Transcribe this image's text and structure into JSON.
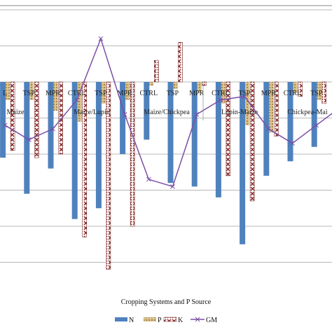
{
  "chart_data": {
    "type": "bar",
    "title": "",
    "xlabel": "Cropping Systems and P Source",
    "ylabel": "",
    "ylim": [
      -5.8,
      2.2
    ],
    "grid": true,
    "legend_position": "bottom",
    "categories": [
      "CTRL",
      "TSP",
      "MPR",
      "CTRL",
      "TSP",
      "MPR",
      "CTRL",
      "TSP",
      "MPR",
      "CTRL",
      "TSP",
      "MPR",
      "CTRL",
      "TSP",
      "MPR"
    ],
    "category_labels_visible": [
      "L",
      "TSP",
      "MPR",
      "CTRL",
      "TSP",
      "MPR",
      "CTRL",
      "TSP",
      "MPR",
      "CTRL",
      "TSP",
      "MPR",
      "CTRL",
      "TSP",
      "MP"
    ],
    "groups": [
      "Maize",
      "Maize/Lupin",
      "Maize/Chickpea",
      "Lupin-Maize",
      "Chickpea-Maize"
    ],
    "group_labels_visible": [
      "Maize",
      "Maize/Lupin",
      "Maize/Chickpea",
      "Lupin-Maize",
      "Chickpea-Mai"
    ],
    "series": [
      {
        "name": "N",
        "values": [
          -2.1,
          -3.1,
          -2.4,
          -3.8,
          -3.5,
          -2.0,
          -1.6,
          -2.8,
          -2.9,
          -3.2,
          -4.5,
          -2.6,
          -2.2,
          -1.8,
          -1.9
        ],
        "color": "#4f81bd"
      },
      {
        "name": "P",
        "values": [
          -0.5,
          -0.5,
          -0.8,
          -1.1,
          -0.6,
          -0.5,
          -0.1,
          -0.2,
          -0.3,
          -0.6,
          -1.2,
          -1.4,
          -0.3,
          -0.5,
          -0.6
        ],
        "color": "#c6a96b"
      },
      {
        "name": "K",
        "values": [
          -1.9,
          -2.1,
          -2.0,
          -4.3,
          -5.2,
          -4.0,
          0.6,
          1.1,
          -0.1,
          -2.6,
          -3.3,
          -1.5,
          -0.4,
          -0.6,
          -0.7
        ],
        "color": "#8b2525"
      }
    ],
    "line_series": {
      "name": "GM",
      "values": [
        -1.2,
        -1.6,
        -1.3,
        -0.5,
        1.2,
        -0.9,
        -2.7,
        -2.9,
        -0.9,
        -0.5,
        -0.4,
        -1.3,
        -1.7,
        -1.2,
        -0.7
      ],
      "color": "#7b4fa6"
    },
    "legend": [
      "N",
      "P",
      "K",
      "GM"
    ]
  }
}
